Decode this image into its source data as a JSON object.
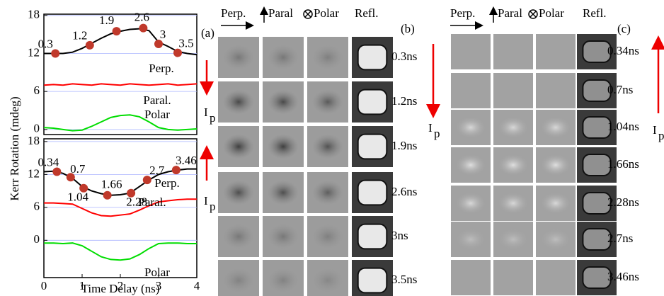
{
  "chart_data": [
    {
      "type": "line",
      "panel_label": "(a)",
      "ylabel": "Kerr Rotation (mdeg)",
      "x": [
        0,
        0.25,
        0.5,
        0.75,
        1,
        1.25,
        1.5,
        1.75,
        2,
        2.25,
        2.5,
        2.75,
        3,
        3.25,
        3.5,
        3.75,
        4
      ],
      "xlim": [
        0,
        4
      ],
      "ylim": [
        -0.8,
        18.2
      ],
      "yticks": [
        0,
        6,
        12,
        18
      ],
      "grid": true,
      "series": [
        {
          "name": "Perp.",
          "color": "#000000",
          "values": [
            12,
            12,
            12,
            12.2,
            12.8,
            13.6,
            14.4,
            15.1,
            15.5,
            15.8,
            15.9,
            15.6,
            13.8,
            13.1,
            12.3,
            12,
            11.8
          ]
        },
        {
          "name": "Paral.",
          "color": "#ff0000",
          "values": [
            7,
            7.1,
            7,
            7.2,
            7.1,
            7,
            7.2,
            7.1,
            7,
            7.2,
            7.1,
            7,
            7.1,
            7.2,
            7,
            7.1,
            7.2
          ]
        },
        {
          "name": "Polar",
          "color": "#00dd00",
          "values": [
            0.3,
            0.2,
            0,
            -0.2,
            -0.1,
            0.5,
            1.2,
            1.9,
            2.2,
            2.3,
            2,
            1.2,
            0.3,
            0,
            -0.1,
            0,
            0.1
          ]
        }
      ],
      "points": {
        "color": "#c0392b",
        "x": [
          0.3,
          1.2,
          1.9,
          2.6,
          3,
          3.5
        ],
        "y": [
          12,
          13.3,
          15.5,
          16,
          13.5,
          12.1
        ]
      },
      "current": {
        "text": "I",
        "sub": "p"
      }
    },
    {
      "type": "line",
      "x": [
        0,
        0.25,
        0.5,
        0.75,
        1,
        1.25,
        1.5,
        1.75,
        2,
        2.25,
        2.5,
        2.75,
        3,
        3.25,
        3.5,
        3.75,
        4
      ],
      "xlim": [
        0,
        4
      ],
      "ylim": [
        -6.8,
        18.5
      ],
      "yticks": [
        0,
        6,
        12,
        18
      ],
      "xticks": [
        0,
        1,
        2,
        3,
        4
      ],
      "grid": true,
      "xlabel": "Time Delay (ns)",
      "series": [
        {
          "name": "Perp.",
          "color": "#000000",
          "values": [
            12.5,
            12.6,
            12.2,
            11.3,
            9.8,
            9,
            8.5,
            8.2,
            8.3,
            8.6,
            9.8,
            11,
            12,
            12.5,
            12.8,
            13,
            13
          ]
        },
        {
          "name": "Paral.",
          "color": "#ff0000",
          "values": [
            6.8,
            6.8,
            6.7,
            6.6,
            5.8,
            5,
            4.5,
            4.4,
            4.6,
            4.8,
            5.5,
            6.3,
            7,
            7.2,
            7.4,
            7.5,
            7.5
          ]
        },
        {
          "name": "Polar",
          "color": "#00dd00",
          "values": [
            -0.5,
            -0.5,
            -0.6,
            -0.5,
            -1,
            -2,
            -3,
            -3.5,
            -3.6,
            -3.4,
            -2.6,
            -1.5,
            -0.6,
            -0.5,
            -0.5,
            -0.6,
            -0.6
          ]
        }
      ],
      "points": {
        "color": "#c0392b",
        "x": [
          0.34,
          0.7,
          1.04,
          1.66,
          2.28,
          2.7,
          3.46
        ],
        "y": [
          12.5,
          11.5,
          9.5,
          8.2,
          8.6,
          11,
          12.8
        ]
      },
      "current": {
        "text": "I",
        "sub": "p"
      }
    }
  ],
  "panels": [
    {
      "label": "(b)",
      "headers": [
        "Perp.",
        "Paral",
        "Polar",
        "Refl."
      ],
      "times": [
        "0.3ns",
        "1.2ns",
        "1.9ns",
        "2.6ns",
        "3ns",
        "3.5ns"
      ],
      "current": {
        "text": "I",
        "sub": "p"
      }
    },
    {
      "label": "(c)",
      "headers": [
        "Perp.",
        "Paral",
        "Polar",
        "Refl."
      ],
      "times": [
        "0.34ns",
        "0.7ns",
        "1.04ns",
        "1.66ns",
        "2.28ns",
        "2.7ns",
        "3.46ns"
      ],
      "current": {
        "text": "I",
        "sub": "p"
      }
    }
  ]
}
